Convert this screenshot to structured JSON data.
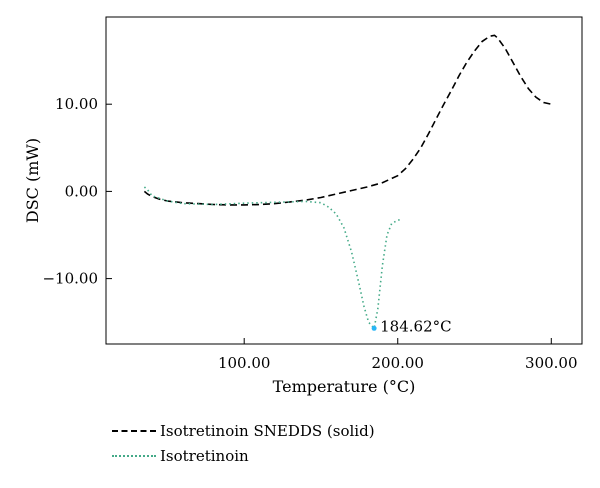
{
  "chart_data": {
    "type": "line",
    "xlabel": "Temperature (°C)",
    "ylabel": "DSC (mW)",
    "xlim": [
      10,
      320
    ],
    "ylim": [
      -17.5,
      20
    ],
    "x_ticks": [
      100,
      200,
      300
    ],
    "x_tick_labels": [
      "100.00",
      "200.00",
      "300.00"
    ],
    "y_ticks": [
      10,
      0,
      -10
    ],
    "y_tick_labels": [
      "10.00",
      "0.00",
      "−10.00"
    ],
    "grid": false,
    "legend_position": "bottom-left, below plot",
    "series": [
      {
        "name": "Isotretinoin SNEDDS (solid)",
        "style": "dashed",
        "color": "#000000",
        "x": [
          35,
          37,
          40,
          45,
          50,
          60,
          70,
          80,
          90,
          100,
          110,
          120,
          130,
          140,
          150,
          160,
          170,
          180,
          190,
          200,
          205,
          210,
          215,
          220,
          225,
          230,
          235,
          240,
          245,
          250,
          255,
          260,
          263,
          265,
          270,
          275,
          280,
          285,
          290,
          295,
          300
        ],
        "y": [
          0,
          -0.3,
          -0.6,
          -0.9,
          -1.1,
          -1.3,
          -1.4,
          -1.5,
          -1.55,
          -1.55,
          -1.5,
          -1.4,
          -1.2,
          -1,
          -0.7,
          -0.3,
          0.1,
          0.5,
          1,
          1.8,
          2.6,
          3.7,
          5,
          6.6,
          8.3,
          10,
          11.6,
          13.3,
          14.8,
          16.1,
          17.2,
          17.8,
          17.9,
          17.6,
          16.4,
          14.8,
          13.2,
          11.8,
          10.8,
          10.2,
          10
        ]
      },
      {
        "name": "Isotretinoin",
        "style": "dotted",
        "color": "#44aa88",
        "x": [
          35,
          37,
          40,
          50,
          60,
          80,
          100,
          120,
          140,
          150,
          155,
          160,
          165,
          170,
          175,
          178,
          181,
          184.62,
          187,
          190,
          193,
          196,
          200,
          203
        ],
        "y": [
          0.5,
          0.2,
          -0.5,
          -1.1,
          -1.4,
          -1.5,
          -1.35,
          -1.25,
          -1.15,
          -1.3,
          -1.8,
          -2.6,
          -4.2,
          -7,
          -10.8,
          -13.2,
          -15,
          -15.7,
          -13.5,
          -8.5,
          -5,
          -3.7,
          -3.3,
          -3.2
        ]
      }
    ],
    "annotations": [
      {
        "text": "184.62°C",
        "x": 184.62,
        "y": -15.7
      }
    ]
  }
}
